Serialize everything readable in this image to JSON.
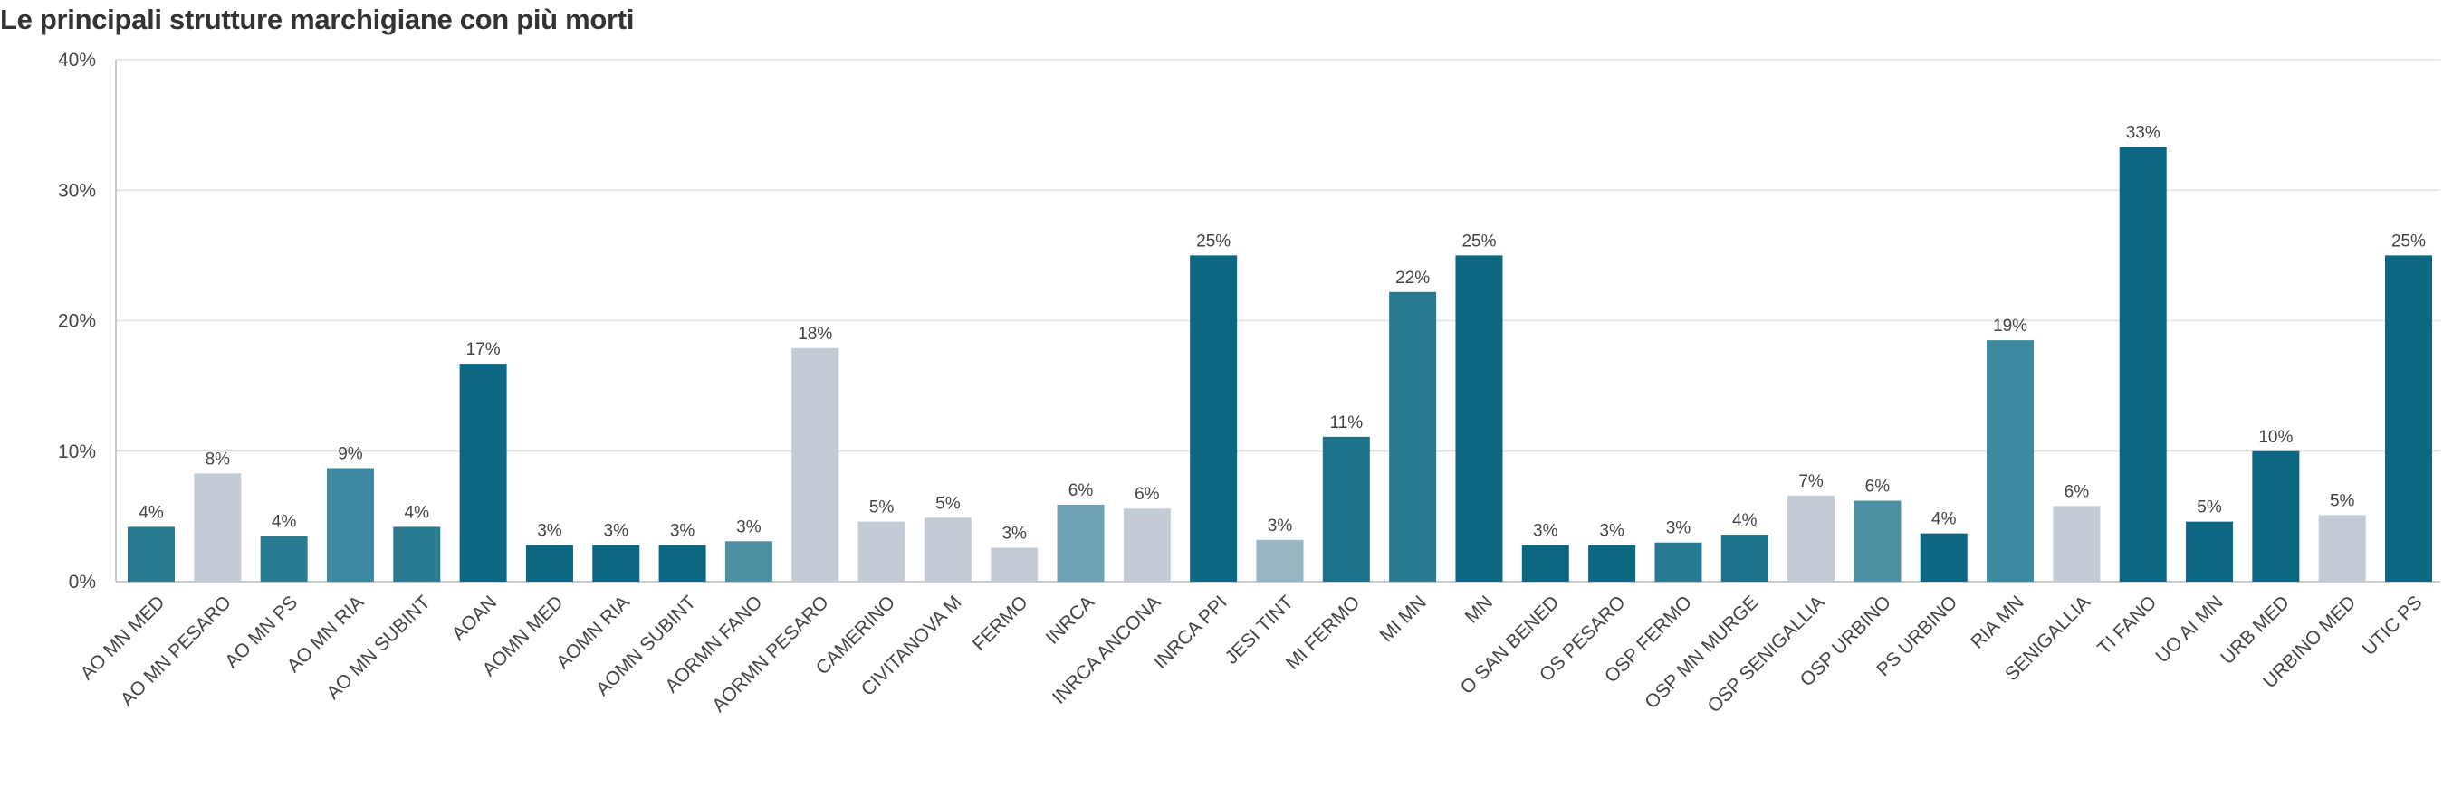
{
  "chart_data": {
    "type": "bar",
    "title": "Le principali strutture marchigiane con più morti",
    "xlabel": "",
    "ylabel": "",
    "ylim": [
      0,
      40
    ],
    "yticks": [
      0,
      10,
      20,
      30,
      40
    ],
    "ytick_labels": [
      "0%",
      "10%",
      "20%",
      "30%",
      "40%"
    ],
    "grid": "horizontal",
    "categories": [
      "AO MN MED",
      "AO MN PESARO",
      "AO MN PS",
      "AO MN RIA",
      "AO MN SUBINT",
      "AOAN",
      "AOMN MED",
      "AOMN RIA",
      "AOMN SUBINT",
      "AORMN FANO",
      "AORMN PESARO",
      "CAMERINO",
      "CIVITANOVA M",
      "FERMO",
      "INRCA",
      "INRCA ANCONA",
      "INRCA PPI",
      "JESI TINT",
      "MI FERMO",
      "MI MN",
      "MN",
      "O SAN BENED",
      "OS PESARO",
      "OSP FERMO",
      "OSP MN MURGE",
      "OSP SENIGALLIA",
      "OSP URBINO",
      "PS URBINO",
      "RIA MN",
      "SENIGALLIA",
      "TI FANO",
      "UO AI MN",
      "URB MED",
      "URBINO MED",
      "UTIC PS"
    ],
    "values": [
      4.2,
      8.3,
      3.5,
      8.7,
      4.2,
      16.7,
      2.8,
      2.8,
      2.8,
      3.1,
      17.9,
      4.6,
      4.9,
      2.6,
      5.9,
      5.6,
      25.0,
      3.2,
      11.1,
      22.2,
      25.0,
      2.8,
      2.8,
      3.0,
      3.6,
      6.6,
      6.2,
      3.7,
      18.5,
      5.8,
      33.3,
      4.6,
      10.0,
      5.1,
      25.0
    ],
    "value_labels": [
      "4%",
      "8%",
      "4%",
      "9%",
      "4%",
      "17%",
      "3%",
      "3%",
      "3%",
      "3%",
      "18%",
      "5%",
      "5%",
      "3%",
      "6%",
      "6%",
      "25%",
      "3%",
      "11%",
      "22%",
      "25%",
      "3%",
      "3%",
      "3%",
      "4%",
      "7%",
      "6%",
      "4%",
      "19%",
      "6%",
      "33%",
      "5%",
      "10%",
      "5%",
      "25%"
    ],
    "colors": [
      "#2a7b92",
      "#c3ccd6",
      "#2a7b92",
      "#3d8aa0",
      "#2a7b92",
      "#0c6882",
      "#0c6882",
      "#0c6882",
      "#0c6882",
      "#4a8fa2",
      "#c3ccd6",
      "#c3ccd6",
      "#c3ccd6",
      "#c3ccd6",
      "#70a2b3",
      "#c3ccd6",
      "#0c6882",
      "#98b6c2",
      "#1d7189",
      "#2a7b92",
      "#0c6882",
      "#0c6882",
      "#0c6882",
      "#2a7b92",
      "#1d7189",
      "#c3ccd6",
      "#4a8fa2",
      "#0c6882",
      "#3d8aa0",
      "#c3ccd6",
      "#0c6882",
      "#0c6882",
      "#0c6882",
      "#c3ccd6",
      "#0c6882"
    ],
    "axis_color": "#bbbbbb",
    "grid_color": "#e2e2e2"
  }
}
